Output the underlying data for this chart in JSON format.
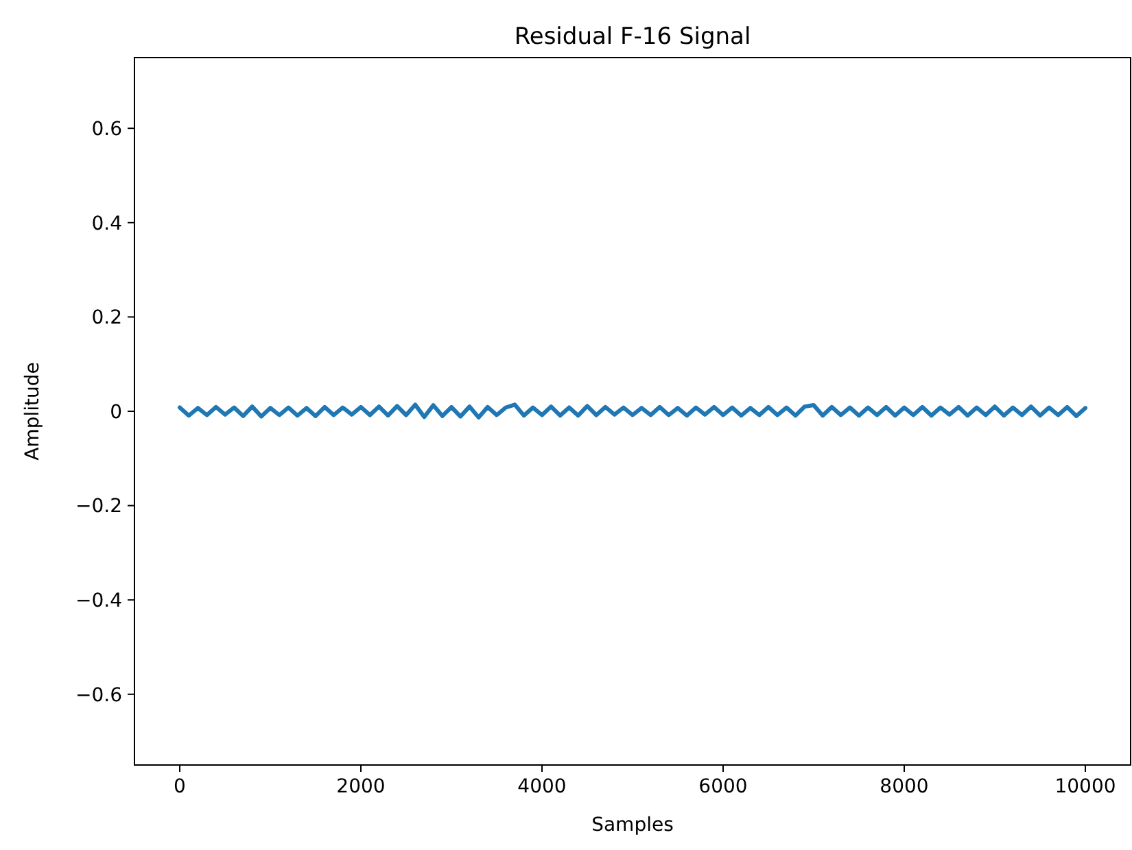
{
  "chart_data": {
    "type": "line",
    "title": "Residual F-16 Signal",
    "xlabel": "Samples",
    "ylabel": "Amplitude",
    "xlim": [
      -500,
      10500
    ],
    "ylim": [
      -0.75,
      0.75
    ],
    "xticks": [
      0,
      2000,
      4000,
      6000,
      8000,
      10000
    ],
    "yticks": [
      {
        "value": -0.6,
        "label": "−0.6"
      },
      {
        "value": -0.4,
        "label": "−0.4"
      },
      {
        "value": -0.2,
        "label": "−0.2"
      },
      0.0,
      0.2,
      0.4,
      0.6
    ],
    "grid": false,
    "series": [
      {
        "color": "#1f77b4",
        "x": [
          0,
          100,
          200,
          300,
          400,
          500,
          600,
          700,
          800,
          900,
          1000,
          1100,
          1200,
          1300,
          1400,
          1500,
          1600,
          1700,
          1800,
          1900,
          2000,
          2100,
          2200,
          2300,
          2400,
          2500,
          2600,
          2700,
          2800,
          2900,
          3000,
          3100,
          3200,
          3300,
          3400,
          3500,
          3600,
          3700,
          3800,
          3900,
          4000,
          4100,
          4200,
          4300,
          4400,
          4500,
          4600,
          4700,
          4800,
          4900,
          5000,
          5100,
          5200,
          5300,
          5400,
          5500,
          5600,
          5700,
          5800,
          5900,
          6000,
          6100,
          6200,
          6300,
          6400,
          6500,
          6600,
          6700,
          6800,
          6900,
          7000,
          7100,
          7200,
          7300,
          7400,
          7500,
          7600,
          7700,
          7800,
          7900,
          8000,
          8100,
          8200,
          8300,
          8400,
          8500,
          8600,
          8700,
          8800,
          8900,
          9000,
          9100,
          9200,
          9300,
          9400,
          9500,
          9600,
          9700,
          9800,
          9900,
          10000
        ],
        "values": [
          0.008,
          -0.009,
          0.007,
          -0.008,
          0.009,
          -0.007,
          0.008,
          -0.01,
          0.01,
          -0.011,
          0.007,
          -0.008,
          0.008,
          -0.009,
          0.007,
          -0.01,
          0.009,
          -0.008,
          0.008,
          -0.007,
          0.009,
          -0.008,
          0.01,
          -0.009,
          0.011,
          -0.008,
          0.014,
          -0.012,
          0.013,
          -0.01,
          0.009,
          -0.011,
          0.01,
          -0.013,
          0.009,
          -0.008,
          0.008,
          0.014,
          -0.009,
          0.008,
          -0.008,
          0.01,
          -0.009,
          0.008,
          -0.009,
          0.011,
          -0.008,
          0.009,
          -0.007,
          0.008,
          -0.008,
          0.007,
          -0.008,
          0.009,
          -0.008,
          0.007,
          -0.009,
          0.008,
          -0.007,
          0.009,
          -0.008,
          0.008,
          -0.009,
          0.007,
          -0.008,
          0.009,
          -0.008,
          0.008,
          -0.009,
          0.01,
          0.013,
          -0.009,
          0.009,
          -0.008,
          0.008,
          -0.009,
          0.008,
          -0.008,
          0.009,
          -0.009,
          0.008,
          -0.008,
          0.009,
          -0.009,
          0.008,
          -0.007,
          0.009,
          -0.009,
          0.008,
          -0.008,
          0.01,
          -0.009,
          0.008,
          -0.008,
          0.01,
          -0.009,
          0.008,
          -0.008,
          0.009,
          -0.01,
          0.007
        ]
      }
    ]
  }
}
